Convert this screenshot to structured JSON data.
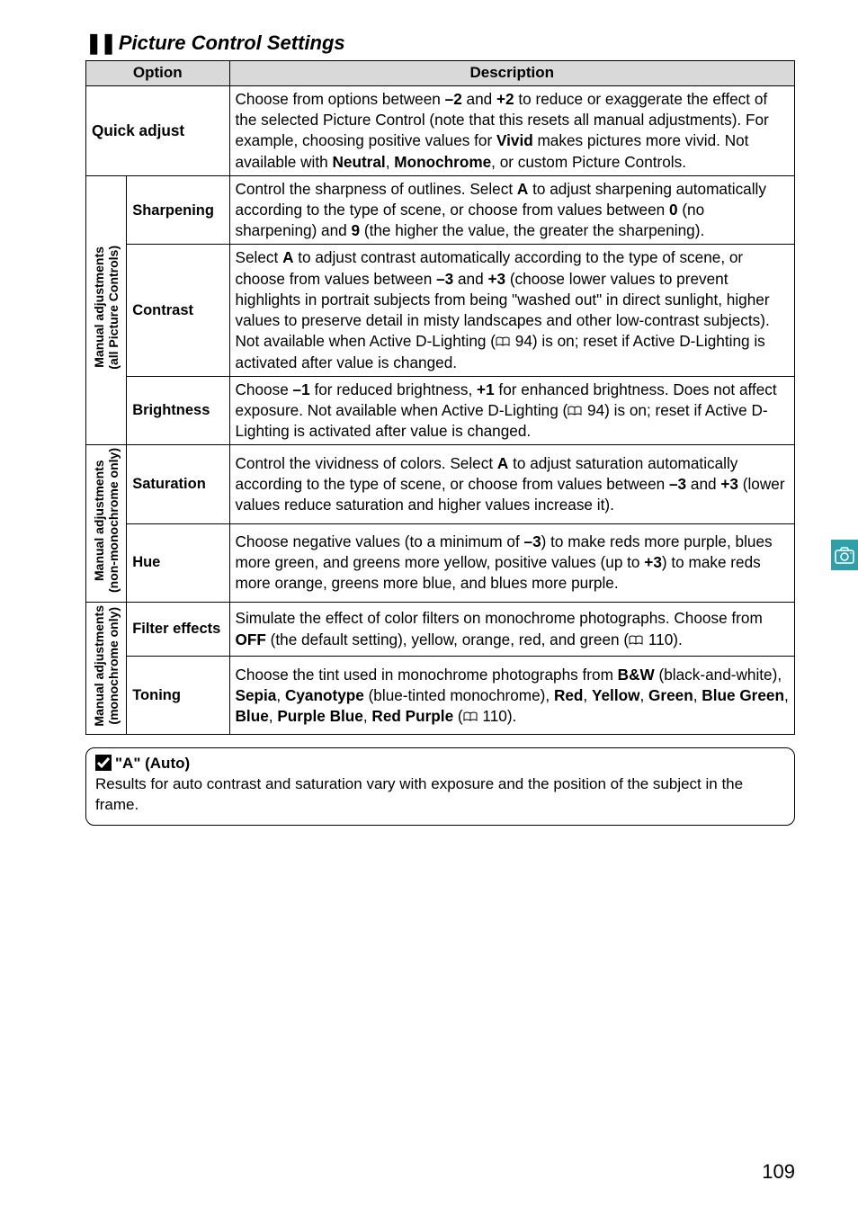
{
  "section_title_prefix": "❚❚",
  "section_title": "Picture Control Settings",
  "headers": {
    "option": "Option",
    "description": "Description"
  },
  "quick_adjust": {
    "label": "Quick adjust",
    "desc_parts": [
      "Choose from options between ",
      "–2",
      " and ",
      "+2",
      " to reduce or exaggerate the effect of the selected Picture Control (note that this resets all manual adjustments). For example, choosing positive values for ",
      "Vivid",
      " makes pictures more vivid. Not available with ",
      "Neutral",
      ", ",
      "Monochrome",
      ", or custom Picture Controls."
    ]
  },
  "group1": {
    "rot_line1": "Manual adjustments",
    "rot_line2": "(all Picture Controls)",
    "sharpening": {
      "label": "Sharpening",
      "desc_parts": [
        "Control the sharpness of outlines.  Select ",
        "A",
        " to adjust sharpening automatically according to the type of scene, or choose from values between ",
        "0",
        " (no sharpening) and ",
        "9",
        " (the higher the value, the greater the sharpening)."
      ]
    },
    "contrast": {
      "label": "Contrast",
      "desc_parts": [
        "Select ",
        "A",
        " to adjust contrast automatically according to the type of scene, or choose from values between ",
        "–3",
        " and ",
        "+3",
        " (choose lower values to prevent highlights in portrait subjects from being \"washed out\" in direct sunlight, higher values to preserve detail in misty landscapes and other low-contrast subjects).  Not available when Active D-Lighting (",
        "BOOK",
        " 94) is on; reset if Active D-Lighting is activated after value is changed."
      ]
    },
    "brightness": {
      "label": "Brightness",
      "desc_parts": [
        "Choose ",
        "–1",
        " for reduced brightness, ",
        "+1",
        " for enhanced brightness.  Does not affect exposure.  Not available when Active D-Lighting (",
        "BOOK",
        " 94) is on; reset if Active D-Lighting is activated after value is changed."
      ]
    }
  },
  "group2": {
    "rot_line1": "Manual adjustments",
    "rot_line2": "(non-monochrome only)",
    "saturation": {
      "label": "Saturation",
      "desc_parts": [
        "Control the vividness of colors.  Select ",
        "A",
        " to adjust saturation automatically according to the type of scene, or choose from values between ",
        "–3",
        " and ",
        "+3",
        " (lower values reduce saturation and higher values increase it)."
      ]
    },
    "hue": {
      "label": "Hue",
      "desc_parts": [
        "Choose negative values (to a minimum of ",
        "–3",
        ") to make reds more purple, blues more green, and greens more yellow, positive values (up to ",
        "+3",
        ") to make reds more orange, greens more blue, and blues more purple."
      ]
    }
  },
  "group3": {
    "rot_line1": "Manual adjustments",
    "rot_line2": "(monochrome only)",
    "filter": {
      "label": "Filter effects",
      "desc_parts": [
        "Simulate the effect of color filters on monochrome photographs.  Choose from ",
        "OFF",
        " (the default setting), yellow, orange, red, and green (",
        "BOOK",
        " 110)."
      ]
    },
    "toning": {
      "label": "Toning",
      "desc_parts": [
        "Choose the tint used in monochrome photographs from ",
        "B&W",
        " (black-and-white), ",
        "Sepia",
        ", ",
        "Cyanotype",
        " (blue-tinted monochrome), ",
        "Red",
        ", ",
        "Yellow",
        ", ",
        "Green",
        ", ",
        "Blue Green",
        ", ",
        "Blue",
        ", ",
        "Purple Blue",
        ", ",
        "Red Purple",
        " (",
        "BOOK",
        " 110)."
      ]
    }
  },
  "note": {
    "title": "\"A\" (Auto)",
    "body": "Results for auto contrast and saturation vary with exposure and the position of the subject in the frame."
  },
  "page_number": "109",
  "colors": {
    "header_bg": "#d9d9d9",
    "tab_bg": "#2fa0a8"
  }
}
